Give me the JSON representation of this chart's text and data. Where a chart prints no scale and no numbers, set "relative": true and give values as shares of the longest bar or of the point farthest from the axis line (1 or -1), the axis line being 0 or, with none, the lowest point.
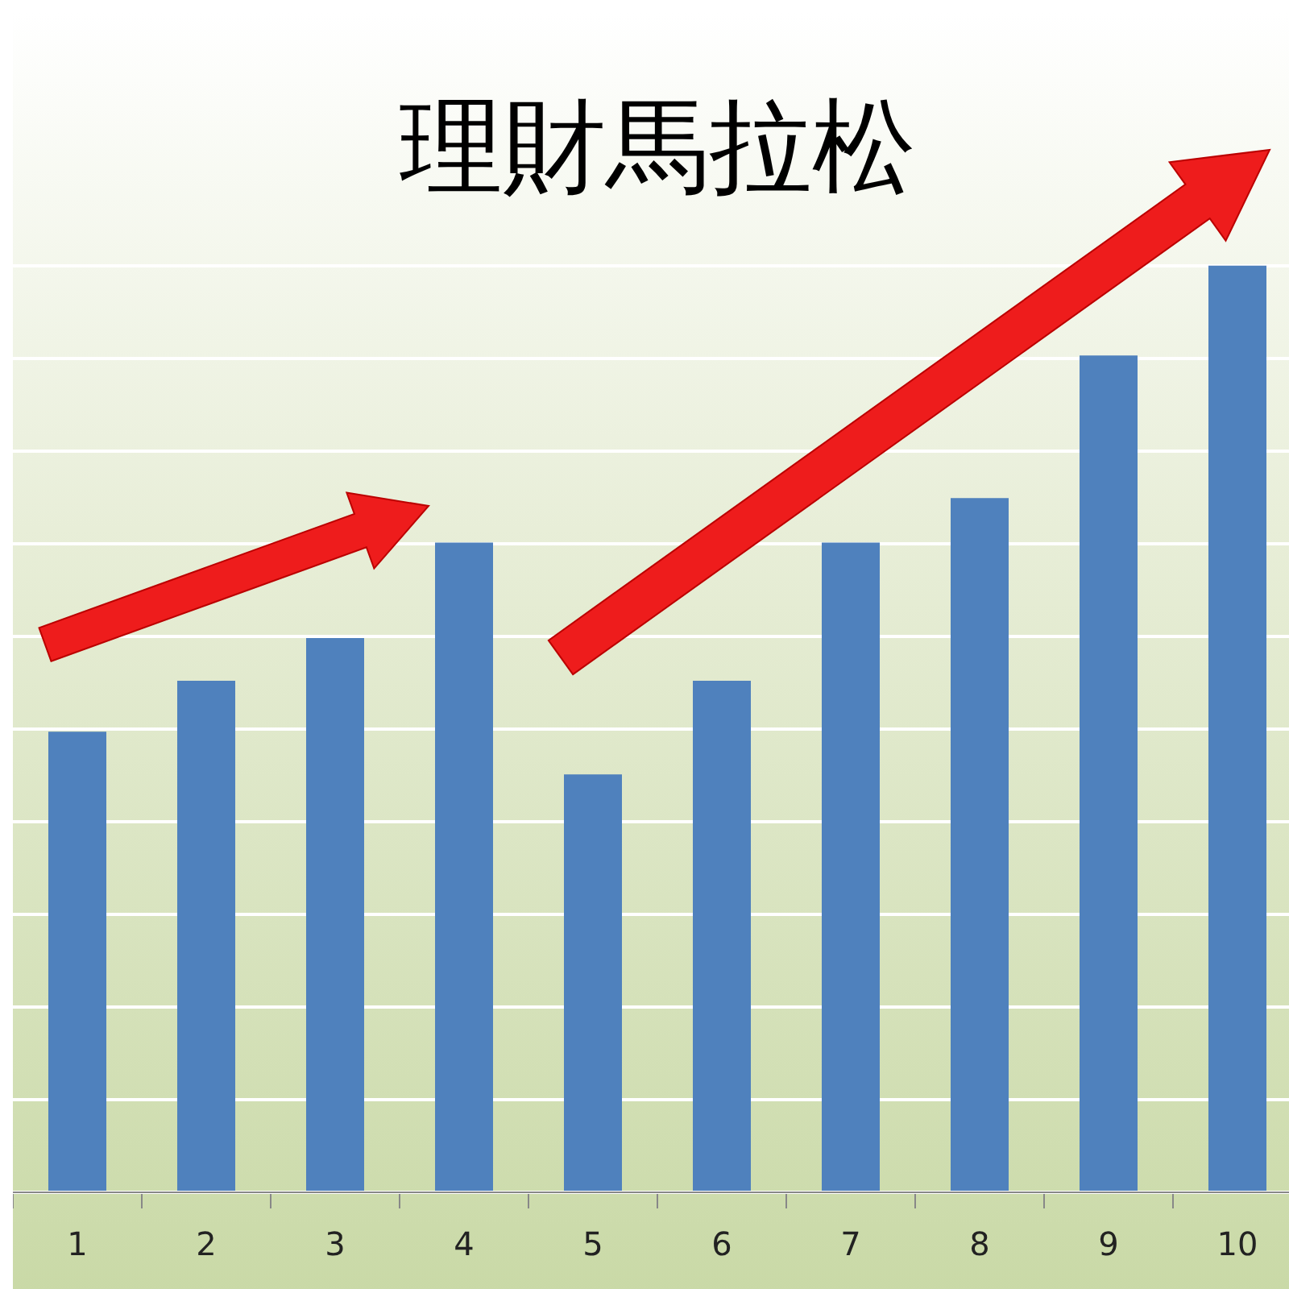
{
  "chart_data": {
    "type": "bar",
    "title": "理財馬拉松",
    "relative": true,
    "categories": [
      "1",
      "2",
      "3",
      "4",
      "5",
      "6",
      "7",
      "8",
      "9",
      "10"
    ],
    "values": [
      0.497,
      0.552,
      0.598,
      0.701,
      0.451,
      0.552,
      0.701,
      0.749,
      0.903,
      1
    ],
    "color": "#4f81bd",
    "grid": "y"
  }
}
